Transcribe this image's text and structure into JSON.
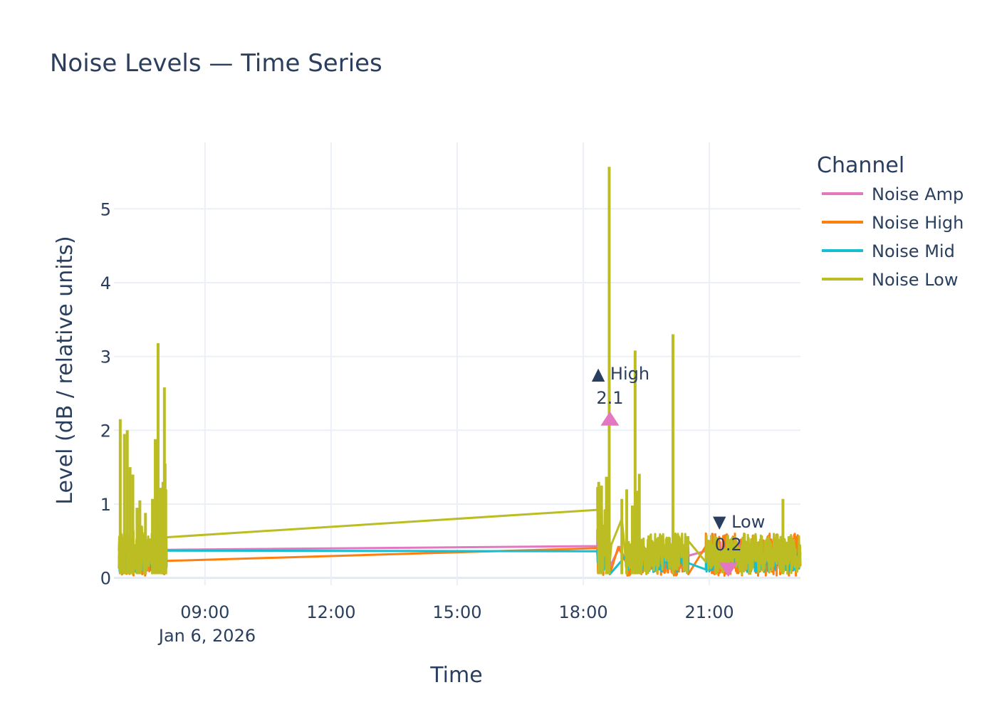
{
  "chart_data": {
    "type": "line",
    "title": "Noise Levels — Time Series",
    "xlabel": "Time",
    "ylabel": "Level (dB / relative units)",
    "x_axis_type": "date",
    "x_range": [
      "2026-01-06 06:50",
      "2026-01-06 23:10"
    ],
    "ylim": [
      -0.1,
      5.9
    ],
    "x_ticks": [
      {
        "value": "2026-01-06 09:00",
        "label": "09:00"
      },
      {
        "value": "2026-01-06 12:00",
        "label": "12:00"
      },
      {
        "value": "2026-01-06 15:00",
        "label": "15:00"
      },
      {
        "value": "2026-01-06 18:00",
        "label": "18:00"
      },
      {
        "value": "2026-01-06 21:00",
        "label": "21:00"
      }
    ],
    "x_date_label": "Jan 6, 2026",
    "y_ticks": [
      0,
      1,
      2,
      3,
      4,
      5
    ],
    "grid": true,
    "legend": {
      "title": "Channel",
      "position": "top-right"
    },
    "series": [
      {
        "name": "Noise Amp",
        "color": "#e377c2",
        "segments": [
          {
            "start": "2026-01-06 06:57",
            "end": "2026-01-06 08:05",
            "low": 0.1,
            "high": 0.45
          },
          {
            "start": "2026-01-06 18:20",
            "end": "2026-01-06 18:38",
            "low": 0.1,
            "high": 0.6
          },
          {
            "start": "2026-01-06 19:00",
            "end": "2026-01-06 20:30",
            "low": 0.1,
            "high": 0.42
          },
          {
            "start": "2026-01-06 20:55",
            "end": "2026-01-06 23:10",
            "low": 0.1,
            "high": 0.5
          }
        ],
        "points": [
          {
            "x": "2026-01-06 08:05",
            "y": 0.38
          },
          {
            "x": "2026-01-06 18:20",
            "y": 0.65
          },
          {
            "x": "2026-01-06 18:38",
            "y": 0.15
          },
          {
            "x": "2026-01-06 18:52",
            "y": 0.42
          },
          {
            "x": "2026-01-06 20:30",
            "y": 0.3
          },
          {
            "x": "2026-01-06 20:55",
            "y": 0.55
          }
        ]
      },
      {
        "name": "Noise High",
        "color": "#ff7f0e",
        "segments": [
          {
            "start": "2026-01-06 06:57",
            "end": "2026-01-06 08:05",
            "low": 0.03,
            "high": 0.5
          },
          {
            "start": "2026-01-06 18:20",
            "end": "2026-01-06 18:38",
            "low": 0.03,
            "high": 0.45
          },
          {
            "start": "2026-01-06 19:00",
            "end": "2026-01-06 20:30",
            "low": 0.03,
            "high": 0.42
          },
          {
            "start": "2026-01-06 20:55",
            "end": "2026-01-06 23:10",
            "low": 0.03,
            "high": 0.6
          }
        ],
        "points": [
          {
            "x": "2026-01-06 08:05",
            "y": 0.23
          },
          {
            "x": "2026-01-06 18:20",
            "y": 0.33
          },
          {
            "x": "2026-01-06 18:38",
            "y": 0.05
          },
          {
            "x": "2026-01-06 18:50",
            "y": 0.42
          },
          {
            "x": "2026-01-06 20:30",
            "y": 0.05
          },
          {
            "x": "2026-01-06 20:55",
            "y": 0.6
          }
        ]
      },
      {
        "name": "Noise Mid",
        "color": "#17becf",
        "segments": [
          {
            "start": "2026-01-06 06:57",
            "end": "2026-01-06 08:05",
            "low": 0.08,
            "high": 0.38
          },
          {
            "start": "2026-01-06 18:20",
            "end": "2026-01-06 18:38",
            "low": 0.08,
            "high": 0.38
          },
          {
            "start": "2026-01-06 19:00",
            "end": "2026-01-06 20:30",
            "low": 0.08,
            "high": 0.38
          },
          {
            "start": "2026-01-06 20:55",
            "end": "2026-01-06 23:10",
            "low": 0.08,
            "high": 0.38
          }
        ],
        "points": [
          {
            "x": "2026-01-06 08:05",
            "y": 0.37
          },
          {
            "x": "2026-01-06 18:20",
            "y": 0.37
          },
          {
            "x": "2026-01-06 18:38",
            "y": 0.05
          },
          {
            "x": "2026-01-06 19:00",
            "y": 0.35
          },
          {
            "x": "2026-01-06 20:30",
            "y": 0.2
          },
          {
            "x": "2026-01-06 20:55",
            "y": 0.3
          }
        ]
      },
      {
        "name": "Noise Low",
        "color": "#bcbd22",
        "segments": [
          {
            "start": "2026-01-06 06:57",
            "end": "2026-01-06 08:05",
            "low": 0.05,
            "high": 0.7
          },
          {
            "start": "2026-01-06 18:20",
            "end": "2026-01-06 18:38",
            "low": 0.05,
            "high": 1.2
          },
          {
            "start": "2026-01-06 19:00",
            "end": "2026-01-06 20:30",
            "low": 0.05,
            "high": 0.6
          },
          {
            "start": "2026-01-06 20:55",
            "end": "2026-01-06 23:10",
            "low": 0.05,
            "high": 0.6
          }
        ],
        "spikes": [
          {
            "x": "2026-01-06 06:59",
            "y": 2.15
          },
          {
            "x": "2026-01-06 07:05",
            "y": 1.95
          },
          {
            "x": "2026-01-06 07:09",
            "y": 2.0
          },
          {
            "x": "2026-01-06 07:13",
            "y": 1.5
          },
          {
            "x": "2026-01-06 07:17",
            "y": 1.4
          },
          {
            "x": "2026-01-06 07:23",
            "y": 0.95
          },
          {
            "x": "2026-01-06 07:27",
            "y": 1.05
          },
          {
            "x": "2026-01-06 07:35",
            "y": 0.88
          },
          {
            "x": "2026-01-06 07:45",
            "y": 1.07
          },
          {
            "x": "2026-01-06 07:49",
            "y": 1.88
          },
          {
            "x": "2026-01-06 07:53",
            "y": 3.18
          },
          {
            "x": "2026-01-06 07:57",
            "y": 1.22
          },
          {
            "x": "2026-01-06 08:00",
            "y": 1.3
          },
          {
            "x": "2026-01-06 08:02",
            "y": 2.58
          },
          {
            "x": "2026-01-06 08:03",
            "y": 1.55
          },
          {
            "x": "2026-01-06 08:04",
            "y": 1.2
          },
          {
            "x": "2026-01-06 18:22",
            "y": 1.3
          },
          {
            "x": "2026-01-06 18:26",
            "y": 1.25
          },
          {
            "x": "2026-01-06 18:33",
            "y": 1.37
          },
          {
            "x": "2026-01-06 18:37",
            "y": 5.57
          },
          {
            "x": "2026-01-06 18:55",
            "y": 1.07
          },
          {
            "x": "2026-01-06 19:02",
            "y": 1.2
          },
          {
            "x": "2026-01-06 19:10",
            "y": 0.98
          },
          {
            "x": "2026-01-06 19:14",
            "y": 3.08
          },
          {
            "x": "2026-01-06 19:17",
            "y": 1.18
          },
          {
            "x": "2026-01-06 19:20",
            "y": 1.41
          },
          {
            "x": "2026-01-06 20:08",
            "y": 3.3
          },
          {
            "x": "2026-01-06 22:45",
            "y": 1.07
          }
        ],
        "points": [
          {
            "x": "2026-01-06 08:05",
            "y": 0.55
          },
          {
            "x": "2026-01-06 18:20",
            "y": 1.22
          },
          {
            "x": "2026-01-06 18:40",
            "y": 0.45
          },
          {
            "x": "2026-01-06 18:55",
            "y": 0.8
          },
          {
            "x": "2026-01-06 20:30",
            "y": 0.5
          },
          {
            "x": "2026-01-06 20:55",
            "y": 0.42
          }
        ]
      }
    ],
    "annotations": [
      {
        "text": "▲ High",
        "value_label": "2.1",
        "x": "2026-01-06 18:38",
        "y": 2.15,
        "marker": "triangle-up",
        "color": "#e377c2"
      },
      {
        "text": "▼ Low",
        "value_label": "0.2",
        "x": "2026-01-06 21:27",
        "y": 0.12,
        "marker": "triangle-down",
        "color": "#e377c2"
      }
    ]
  }
}
